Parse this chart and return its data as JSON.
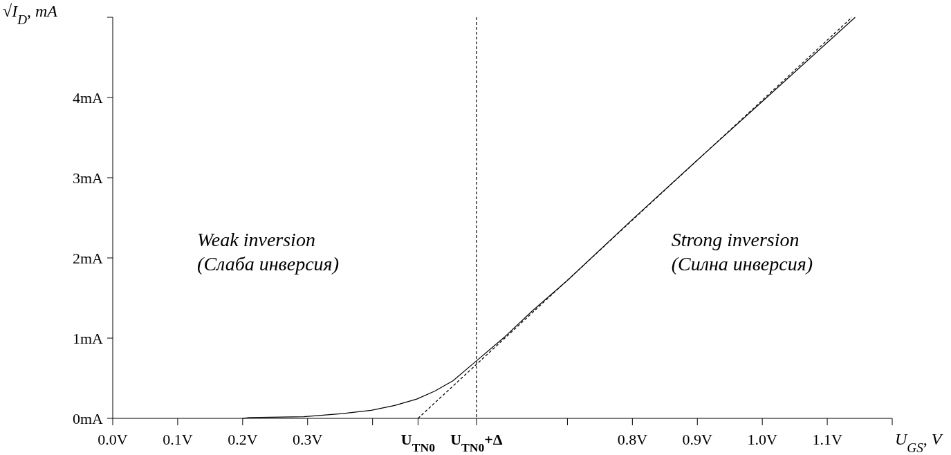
{
  "chart_data": {
    "type": "line",
    "xlabel": "U$_{GS}$, V",
    "ylabel": "√I$_{D}$, mA",
    "xlim": [
      0,
      1.2
    ],
    "ylim": [
      0,
      5
    ],
    "xticks": [
      {
        "value": 0,
        "label": "0.0V"
      },
      {
        "value": 0.1,
        "label": "0.1V"
      },
      {
        "value": 0.2,
        "label": "0.2V"
      },
      {
        "value": 0.3,
        "label": "0.3V"
      },
      {
        "value": 0.4,
        "label": null
      },
      {
        "value": 0.47,
        "label": "U$_{TN0}$"
      },
      {
        "value": 0.56,
        "label": "U$_{TN0}$+Δ"
      },
      {
        "value": 0.7,
        "label": null
      },
      {
        "value": 0.8,
        "label": "0.8V"
      },
      {
        "value": 0.9,
        "label": "0.9V"
      },
      {
        "value": 1.0,
        "label": "1.0V"
      },
      {
        "value": 1.1,
        "label": "1.1V"
      },
      {
        "value": 1.2,
        "label": null
      }
    ],
    "yticks": [
      {
        "value": 0,
        "label": "0mA"
      },
      {
        "value": 1,
        "label": "1mA"
      },
      {
        "value": 2,
        "label": "2mA"
      },
      {
        "value": 3,
        "label": "3mA"
      },
      {
        "value": 4,
        "label": "4mA"
      },
      {
        "value": 5,
        "label": null
      }
    ],
    "grid": false,
    "marker": "none",
    "series": [
      {
        "color": "#000000",
        "line_style": "solid",
        "x": [
          0.2,
          0.21,
          0.294,
          0.354,
          0.398,
          0.434,
          0.468,
          0.496,
          0.524,
          0.559,
          0.604,
          0.646,
          0.7,
          0.8,
          0.9,
          1.0,
          1.143
        ],
        "values": [
          0,
          0.01,
          0.02,
          0.06,
          0.1,
          0.16,
          0.24,
          0.34,
          0.47,
          0.71,
          1.02,
          1.34,
          1.72,
          2.48,
          3.22,
          3.95,
          5
        ]
      },
      {
        "color": "#000000",
        "line_style": "dashed",
        "x": [
          0.47,
          1.138
        ],
        "values": [
          0,
          5
        ]
      }
    ],
    "ref_lines": [
      {
        "axis": "x",
        "value": 0.56,
        "label": null,
        "color": "#000000",
        "line_style": "dashed"
      }
    ],
    "annotations": [
      "Weak inversion\n(Слаба инверсия)",
      "Strong inversion\n(Силна инверсия)"
    ]
  }
}
